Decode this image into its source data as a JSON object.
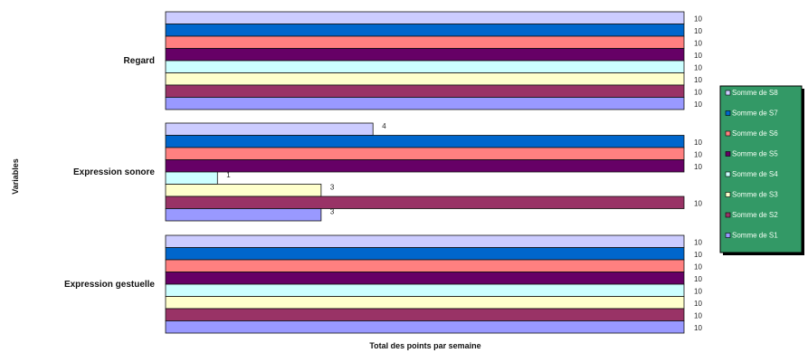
{
  "chart_data": {
    "type": "bar",
    "orientation": "horizontal",
    "title": "",
    "xlabel": "Total des points par semaine",
    "ylabel": "Variables",
    "xlim": [
      0,
      10
    ],
    "grid": false,
    "legend_position": "right",
    "categories": [
      "Regard",
      "Expression sonore",
      "Expression gestuelle"
    ],
    "series": [
      {
        "name": "Somme de S8",
        "color": "#ccccff",
        "values": [
          10,
          4,
          10
        ]
      },
      {
        "name": "Somme de S7",
        "color": "#0066cc",
        "values": [
          10,
          10,
          10
        ]
      },
      {
        "name": "Somme de S6",
        "color": "#ff8080",
        "values": [
          10,
          10,
          10
        ]
      },
      {
        "name": "Somme de S5",
        "color": "#660066",
        "values": [
          10,
          10,
          10
        ]
      },
      {
        "name": "Somme de S4",
        "color": "#ccffff",
        "values": [
          10,
          1,
          10
        ]
      },
      {
        "name": "Somme de S3",
        "color": "#ffffcc",
        "values": [
          10,
          3,
          10
        ]
      },
      {
        "name": "Somme de S2",
        "color": "#993366",
        "values": [
          10,
          10,
          10
        ]
      },
      {
        "name": "Somme de S1",
        "color": "#9999ff",
        "values": [
          10,
          3,
          10
        ]
      }
    ],
    "legend_background": "#339966"
  }
}
